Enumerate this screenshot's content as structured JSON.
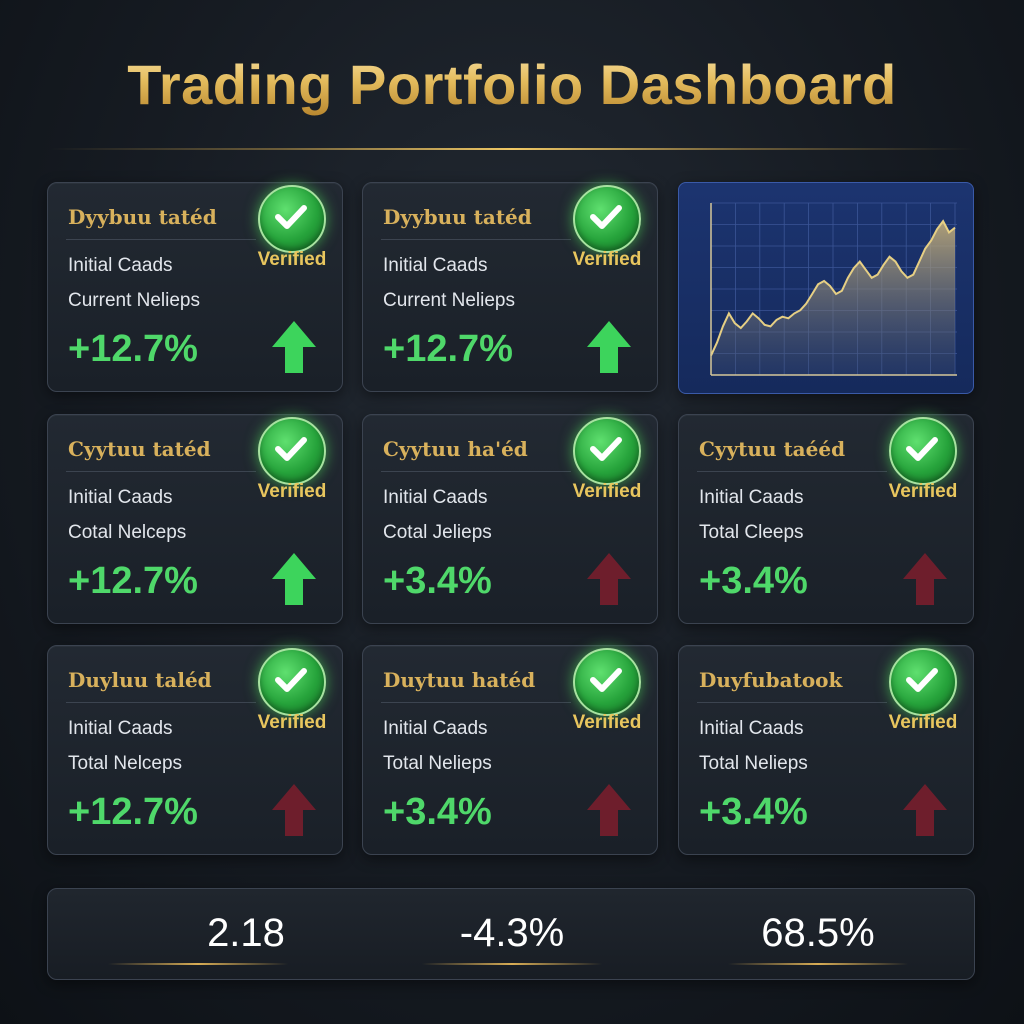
{
  "header": {
    "title": "Trading Portfolio Dashboard"
  },
  "colors": {
    "gold": "#d8b15c",
    "positive": "#4fd86a",
    "arrow_up_green": "#3dd45c",
    "arrow_up_dark_red": "#6e1e2c",
    "chart_bg": "#1c3470",
    "chart_line": "#e6cf84"
  },
  "cards": [
    {
      "title": "Dyybuu tatéd",
      "line1": "Initial Caads",
      "line2": "Current Nelieps",
      "change": "+12.7%",
      "badge": "Verified",
      "icon": "check-circle-icon",
      "arrow": "arrow-up-green-icon"
    },
    {
      "title": "Dyybuu tatéd",
      "line1": "Initial Caads",
      "line2": "Current Nelieps",
      "change": "+12.7%",
      "badge": "Verified",
      "icon": "check-circle-icon",
      "arrow": "arrow-up-green-icon"
    },
    {
      "title": "Cyytuu tatéd",
      "line1": "Initial Caads",
      "line2": "Cotal Nelceps",
      "change": "+12.7%",
      "badge": "Verified",
      "icon": "check-circle-icon",
      "arrow": "arrow-up-green-icon"
    },
    {
      "title": "Cyytuu ha'éd",
      "line1": "Initial Caads",
      "line2": "Cotal Jelieps",
      "change": "+3.4%",
      "badge": "Verified",
      "icon": "check-circle-icon",
      "arrow": "arrow-up-dark-red-icon"
    },
    {
      "title": "Cyytuu taééd",
      "line1": "Initial Caads",
      "line2": "Total Cleeps",
      "change": "+3.4%",
      "badge": "Verified",
      "icon": "check-circle-icon",
      "arrow": "arrow-up-dark-red-icon"
    },
    {
      "title": "Duyluu taléd",
      "line1": "Initial Caads",
      "line2": "Total Nelceps",
      "change": "+12.7%",
      "badge": "Verified",
      "icon": "check-circle-icon",
      "arrow": "arrow-up-dark-red-icon"
    },
    {
      "title": "Duytuu hatéd",
      "line1": "Initial Caads",
      "line2": "Total Nelieps",
      "change": "+3.4%",
      "badge": "Verified",
      "icon": "check-circle-icon",
      "arrow": "arrow-up-dark-red-icon"
    },
    {
      "title": "Duyfubatook",
      "line1": "Initial Caads",
      "line2": "Total Nelieps",
      "change": "+3.4%",
      "badge": "Verified",
      "icon": "check-circle-icon",
      "arrow": "arrow-up-dark-red-icon"
    }
  ],
  "chart_data": {
    "type": "area",
    "title": "",
    "xlabel": "",
    "ylabel": "",
    "grid": true,
    "x": [
      0,
      1,
      2,
      3,
      4,
      5,
      6,
      7,
      8,
      9,
      10,
      11,
      12,
      13,
      14,
      15,
      16,
      17,
      18,
      19,
      20,
      21,
      22,
      23,
      24,
      25,
      26,
      27,
      28,
      29,
      30,
      31,
      32,
      33,
      34,
      35,
      36,
      37,
      38,
      39,
      40,
      41
    ],
    "values": [
      12,
      20,
      30,
      38,
      32,
      29,
      33,
      38,
      35,
      31,
      30,
      34,
      36,
      35,
      38,
      40,
      44,
      50,
      56,
      58,
      55,
      50,
      52,
      60,
      66,
      70,
      65,
      60,
      62,
      68,
      73,
      70,
      64,
      60,
      62,
      70,
      78,
      83,
      90,
      95,
      88,
      91
    ],
    "ylim": [
      0,
      100
    ]
  },
  "stats": [
    {
      "value": "2.18"
    },
    {
      "value": "-4.3%"
    },
    {
      "value": "68.5%"
    }
  ]
}
